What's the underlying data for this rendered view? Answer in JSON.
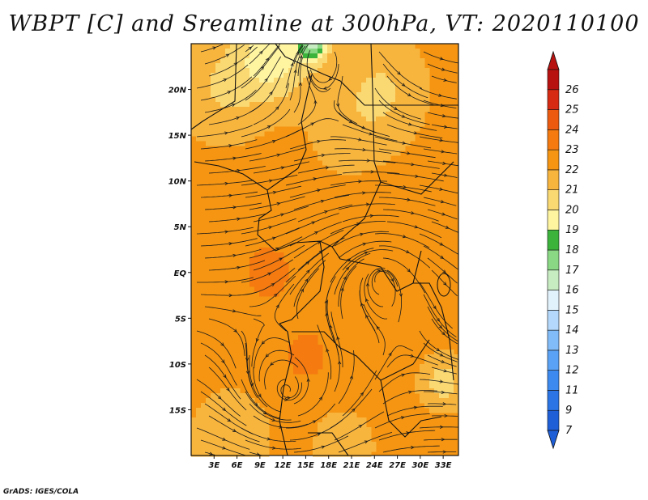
{
  "title": "WBPT [C] and Sreamline at 300hPa, VT: 2020110100",
  "footer": "GrADS: IGES/COLA",
  "map": {
    "lon_range": [
      0,
      35
    ],
    "lat_range": [
      -20,
      25
    ],
    "lon_ticks": [
      {
        "value": 3,
        "label": "3E"
      },
      {
        "value": 6,
        "label": "6E"
      },
      {
        "value": 9,
        "label": "9E"
      },
      {
        "value": 12,
        "label": "12E"
      },
      {
        "value": 15,
        "label": "15E"
      },
      {
        "value": 18,
        "label": "18E"
      },
      {
        "value": 21,
        "label": "21E"
      },
      {
        "value": 24,
        "label": "24E"
      },
      {
        "value": 27,
        "label": "27E"
      },
      {
        "value": 30,
        "label": "30E"
      },
      {
        "value": 33,
        "label": "33E"
      }
    ],
    "lat_ticks": [
      {
        "value": 20,
        "label": "20N"
      },
      {
        "value": 15,
        "label": "15N"
      },
      {
        "value": 10,
        "label": "10N"
      },
      {
        "value": 5,
        "label": "5N"
      },
      {
        "value": 0,
        "label": "EQ"
      },
      {
        "value": -5,
        "label": "5S"
      },
      {
        "value": -10,
        "label": "10S"
      },
      {
        "value": -15,
        "label": "15S"
      }
    ]
  },
  "colorbar": {
    "levels": [
      "7",
      "9",
      "11",
      "12",
      "13",
      "14",
      "15",
      "16",
      "17",
      "18",
      "19",
      "20",
      "21",
      "22",
      "23",
      "24",
      "25",
      "26"
    ],
    "colors": [
      "#1e5fd8",
      "#2a74e6",
      "#3c8af0",
      "#5aa2f5",
      "#82bcf8",
      "#b4d8fb",
      "#e2f2fd",
      "#c8ecc2",
      "#8ad884",
      "#3cb43c",
      "#fff4a0",
      "#fad872",
      "#f8b53e",
      "#f59512",
      "#f57a10",
      "#ec5a10",
      "#d62a12",
      "#b81210"
    ]
  },
  "wbpt_field": {
    "units": "C",
    "base_value": 22.5,
    "features": [
      {
        "lon": 11,
        "lat": 24,
        "value": 19.5,
        "spread_deg": 5
      },
      {
        "lon": 16,
        "lat": 25,
        "value": 17.5,
        "spread_deg": 1.8
      },
      {
        "lon": 25,
        "lat": 20,
        "value": 21,
        "spread_deg": 6
      },
      {
        "lon": 4,
        "lat": 20,
        "value": 21,
        "spread_deg": 6
      },
      {
        "lon": 20,
        "lat": 15,
        "value": 21.8,
        "spread_deg": 6
      },
      {
        "lon": 10,
        "lat": 0,
        "value": 23.6,
        "spread_deg": 3
      },
      {
        "lon": 15,
        "lat": -9,
        "value": 23.4,
        "spread_deg": 3
      },
      {
        "lon": 5,
        "lat": -18,
        "value": 21,
        "spread_deg": 5
      },
      {
        "lon": 20,
        "lat": -19,
        "value": 21.2,
        "spread_deg": 4
      },
      {
        "lon": 33,
        "lat": -12,
        "value": 20.5,
        "spread_deg": 3
      }
    ]
  }
}
